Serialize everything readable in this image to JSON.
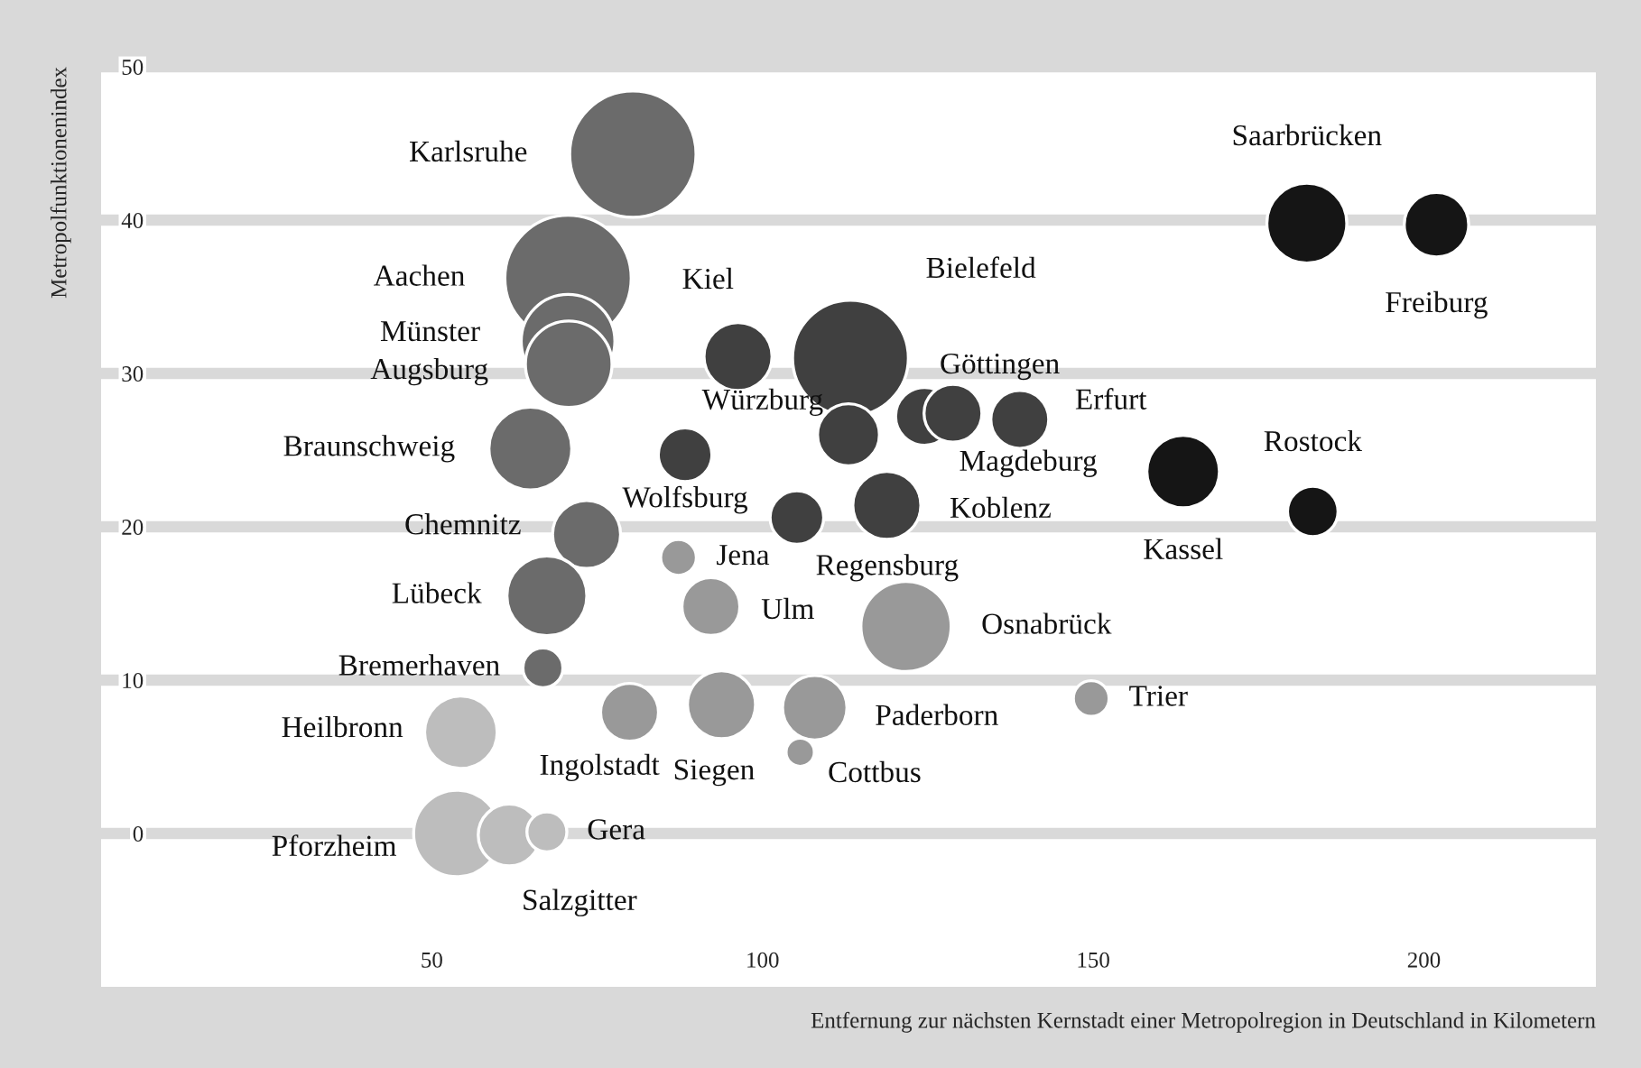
{
  "chart_data": {
    "type": "bubble",
    "xlabel": "Entfernung zur nächsten Kernstadt einer Metropolregion in Deutschland in Kilometern",
    "ylabel": "Metropolfunktionenindex",
    "xlim": [
      0,
      226
    ],
    "ylim": [
      -10,
      50
    ],
    "xticks": [
      50,
      100,
      150,
      200
    ],
    "yticks": [
      0,
      10,
      20,
      30,
      40,
      50
    ],
    "grid": "y",
    "series": [
      {
        "name": "Karlsruhe",
        "color": "#6b6b6b",
        "x": [
          80.4
        ],
        "values": [
          44.3
        ],
        "sizes": [
          1
        ]
      },
      {
        "name": "Aachen",
        "color": "#6b6b6b",
        "x": [
          70.6
        ],
        "values": [
          36.2
        ],
        "sizes": [
          1
        ]
      },
      {
        "name": "Münster",
        "color": "#6b6b6b",
        "x": [
          70.6
        ],
        "values": [
          32.1
        ],
        "sizes": [
          0.55
        ]
      },
      {
        "name": "Augsburg",
        "color": "#6b6b6b",
        "x": [
          70.7
        ],
        "values": [
          30.6
        ],
        "sizes": [
          0.47
        ]
      },
      {
        "name": "Braunschweig",
        "color": "#6b6b6b",
        "x": [
          64.9
        ],
        "values": [
          25.1
        ],
        "sizes": [
          0.43
        ]
      },
      {
        "name": "Kiel",
        "color": "#404040",
        "x": [
          96.3
        ],
        "values": [
          31.1
        ],
        "sizes": [
          0.29
        ]
      },
      {
        "name": "Bielefeld",
        "color": "#404040",
        "x": [
          113.3
        ],
        "values": [
          31.0
        ],
        "sizes": [
          0.84
        ]
      },
      {
        "name": "Göttingen",
        "color": "#404040",
        "x": [
          124.5
        ],
        "values": [
          27.2
        ],
        "sizes": [
          0.21
        ]
      },
      {
        "name": "Magdeburg",
        "color": "#404040",
        "x": [
          128.8
        ],
        "values": [
          27.4
        ],
        "sizes": [
          0.21
        ]
      },
      {
        "name": "Erfurt",
        "color": "#404040",
        "x": [
          138.9
        ],
        "values": [
          27.0
        ],
        "sizes": [
          0.21
        ]
      },
      {
        "name": "Würzburg",
        "color": "#404040",
        "x": [
          113.0
        ],
        "values": [
          26.0
        ],
        "sizes": [
          0.24
        ]
      },
      {
        "name": "Wolfsburg",
        "color": "#404040",
        "x": [
          88.3
        ],
        "values": [
          24.7
        ],
        "sizes": [
          0.18
        ]
      },
      {
        "name": "Regensburg",
        "color": "#404040",
        "x": [
          105.2
        ],
        "values": [
          20.6
        ],
        "sizes": [
          0.18
        ]
      },
      {
        "name": "Koblenz",
        "color": "#404040",
        "x": [
          118.8
        ],
        "values": [
          21.4
        ],
        "sizes": [
          0.29
        ]
      },
      {
        "name": "Kassel",
        "color": "#151515",
        "x": [
          163.6
        ],
        "values": [
          23.6
        ],
        "sizes": [
          0.33
        ]
      },
      {
        "name": "Rostock",
        "color": "#151515",
        "x": [
          183.2
        ],
        "values": [
          21.0
        ],
        "sizes": [
          0.16
        ]
      },
      {
        "name": "Saarbrücken",
        "color": "#151515",
        "x": [
          182.3
        ],
        "values": [
          39.8
        ],
        "sizes": [
          0.4
        ]
      },
      {
        "name": "Freiburg",
        "color": "#151515",
        "x": [
          201.9
        ],
        "values": [
          39.7
        ],
        "sizes": [
          0.26
        ]
      },
      {
        "name": "Chemnitz",
        "color": "#6b6b6b",
        "x": [
          73.4
        ],
        "values": [
          19.5
        ],
        "sizes": [
          0.29
        ]
      },
      {
        "name": "Jena",
        "color": "#999999",
        "x": [
          87.3
        ],
        "values": [
          18.0
        ],
        "sizes": [
          0.08
        ]
      },
      {
        "name": "Lübeck",
        "color": "#6b6b6b",
        "x": [
          67.4
        ],
        "values": [
          15.5
        ],
        "sizes": [
          0.4
        ]
      },
      {
        "name": "Ulm",
        "color": "#999999",
        "x": [
          92.2
        ],
        "values": [
          14.8
        ],
        "sizes": [
          0.21
        ]
      },
      {
        "name": "Osnabrück",
        "color": "#999999",
        "x": [
          121.7
        ],
        "values": [
          13.5
        ],
        "sizes": [
          0.51
        ]
      },
      {
        "name": "Bremerhaven",
        "color": "#6b6b6b",
        "x": [
          66.8
        ],
        "values": [
          10.8
        ],
        "sizes": [
          0.1
        ]
      },
      {
        "name": "Heilbronn",
        "color": "#bdbdbd",
        "x": [
          54.4
        ],
        "values": [
          6.6
        ],
        "sizes": [
          0.33
        ]
      },
      {
        "name": "Ingolstadt",
        "color": "#999999",
        "x": [
          79.9
        ],
        "values": [
          7.9
        ],
        "sizes": [
          0.21
        ]
      },
      {
        "name": "Siegen",
        "color": "#999999",
        "x": [
          93.8
        ],
        "values": [
          8.4
        ],
        "sizes": [
          0.29
        ]
      },
      {
        "name": "Paderborn",
        "color": "#999999",
        "x": [
          107.9
        ],
        "values": [
          8.2
        ],
        "sizes": [
          0.26
        ]
      },
      {
        "name": "Cottbus",
        "color": "#999999",
        "x": [
          105.7
        ],
        "values": [
          5.3
        ],
        "sizes": [
          0.05
        ]
      },
      {
        "name": "Trier",
        "color": "#999999",
        "x": [
          149.7
        ],
        "values": [
          8.8
        ],
        "sizes": [
          0.08
        ]
      },
      {
        "name": "Pforzheim",
        "color": "#bdbdbd",
        "x": [
          53.8
        ],
        "values": [
          0.0
        ],
        "sizes": [
          0.47
        ]
      },
      {
        "name": "Salzgitter",
        "color": "#bdbdbd",
        "x": [
          61.7
        ],
        "values": [
          -0.1
        ],
        "sizes": [
          0.24
        ]
      },
      {
        "name": "Gera",
        "color": "#bdbdbd",
        "x": [
          67.4
        ],
        "values": [
          0.1
        ],
        "sizes": [
          0.1
        ]
      }
    ]
  }
}
